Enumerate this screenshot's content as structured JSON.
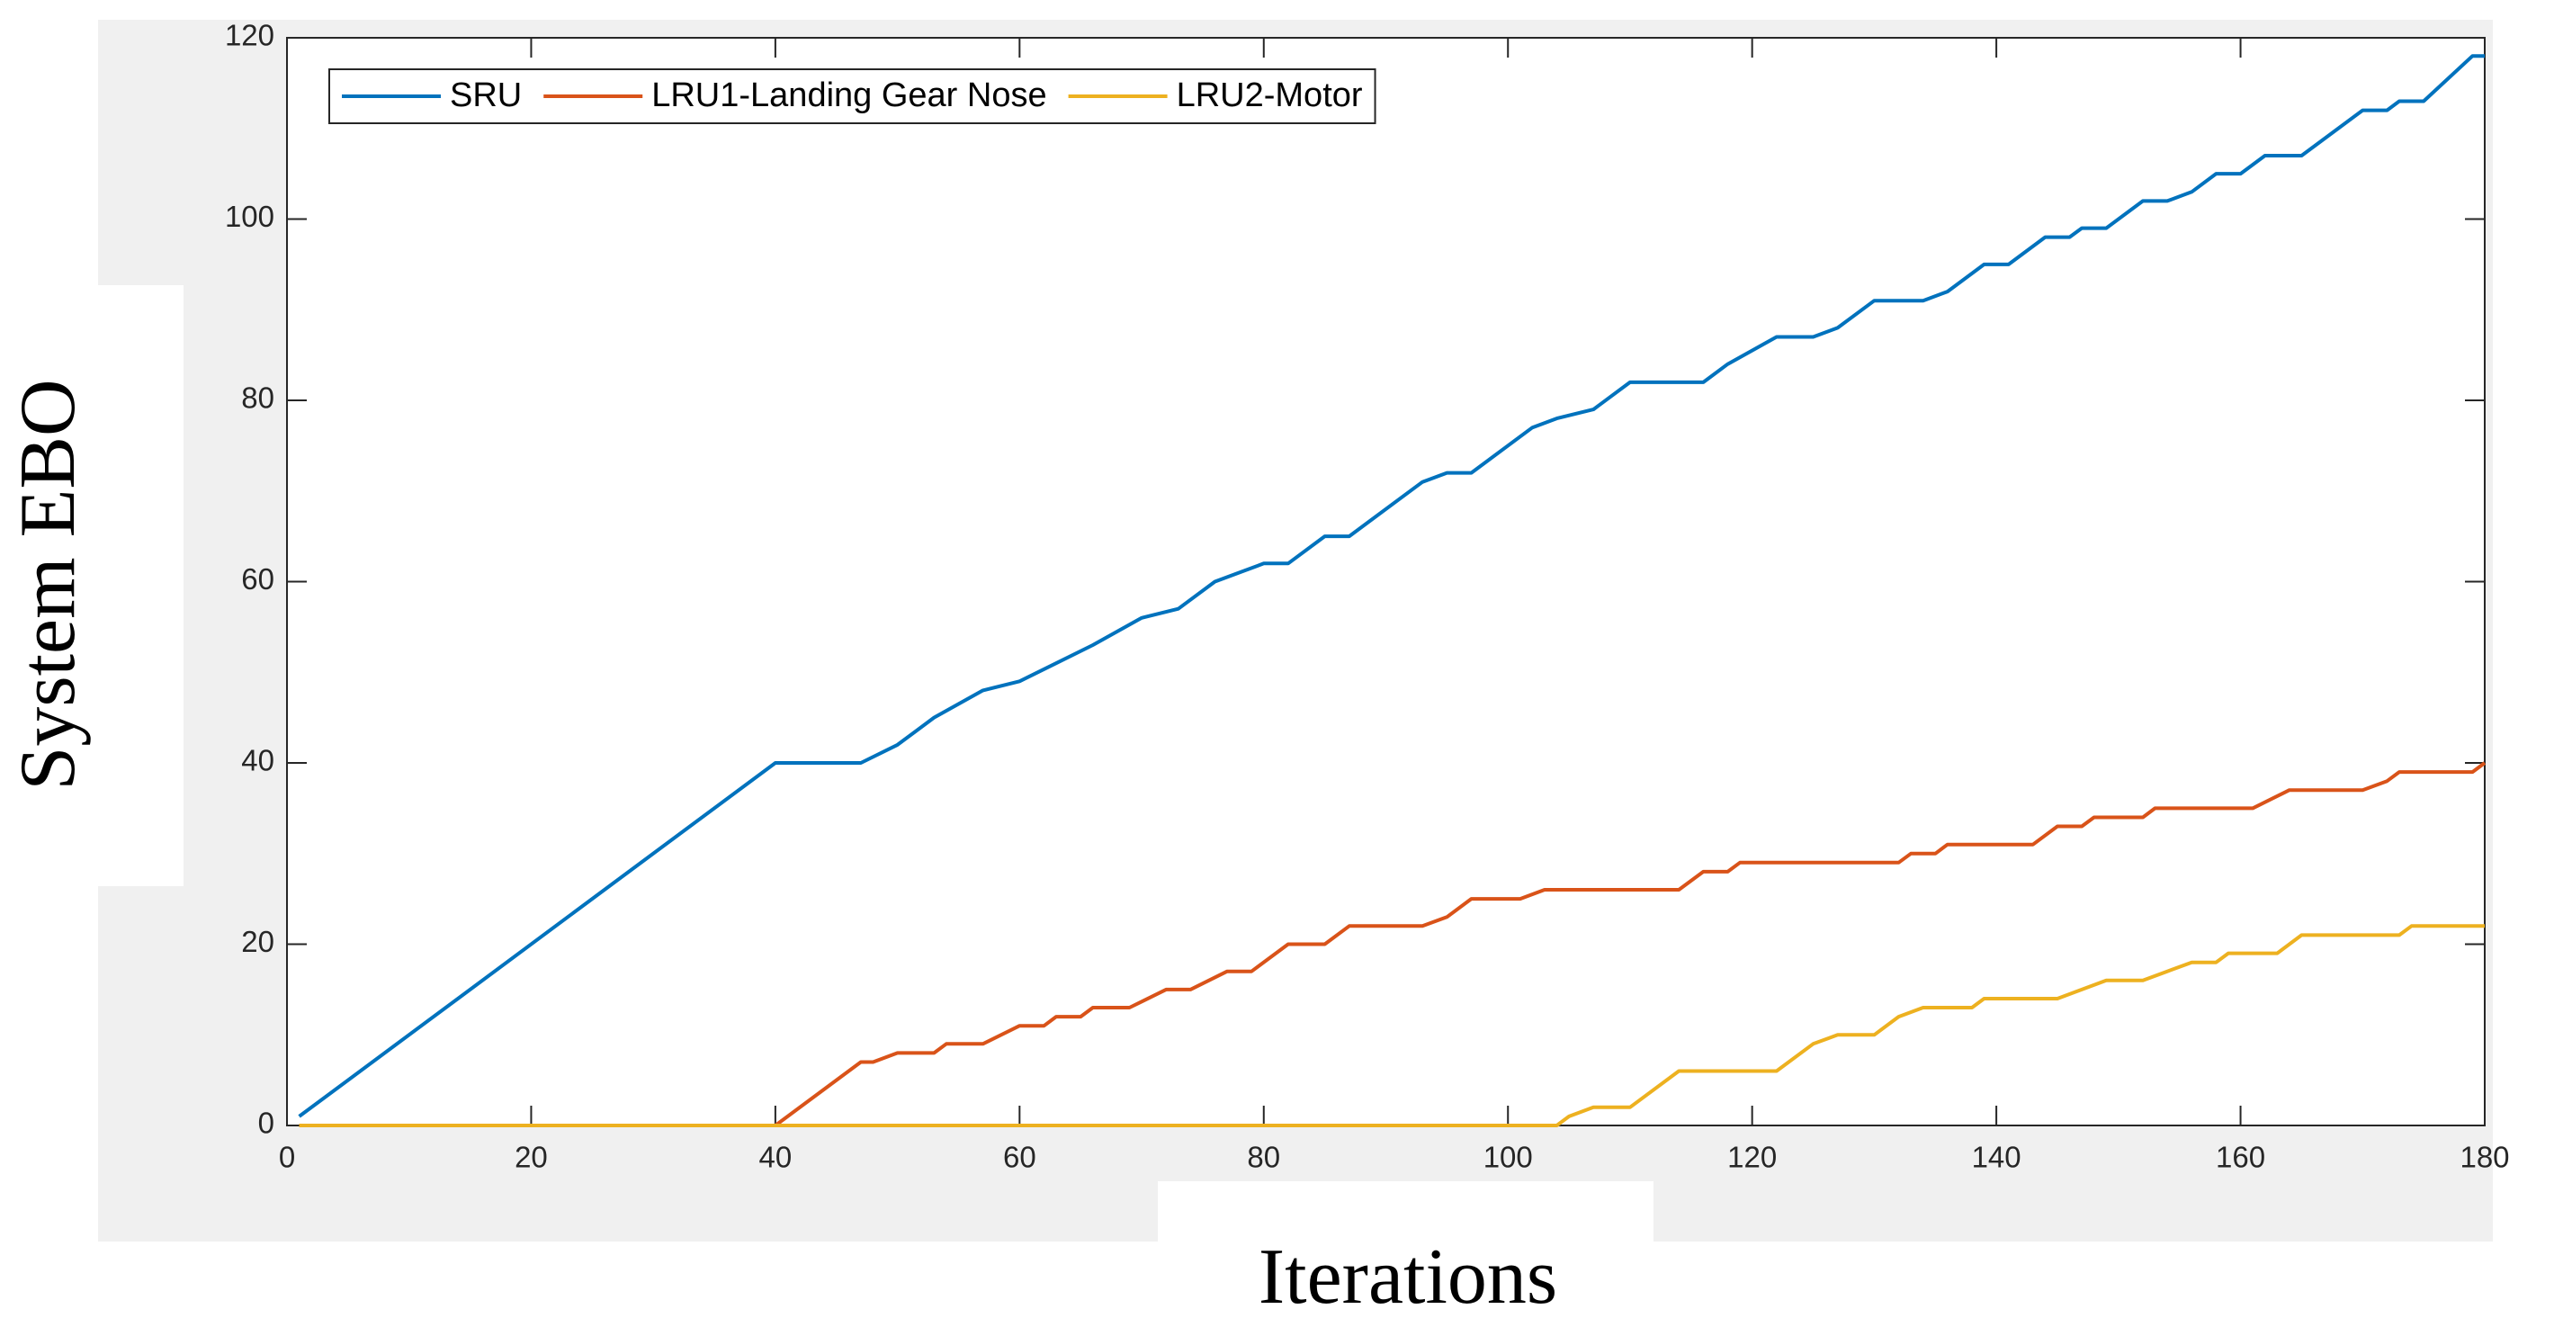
{
  "chart_data": {
    "type": "line",
    "xlabel": "Iterations",
    "ylabel": "System EBO",
    "xlim": [
      0,
      180
    ],
    "xticks": [
      0,
      20,
      40,
      60,
      80,
      100,
      120,
      140,
      160,
      180
    ],
    "ylim": [
      0,
      120
    ],
    "yticks": [
      0,
      20,
      40,
      60,
      80,
      100,
      120
    ],
    "legend": "northwest",
    "series": [
      {
        "name": "SRU",
        "color": "#0072BD",
        "x": [
          1,
          40,
          47,
          50,
          53,
          57,
          60,
          63,
          66,
          70,
          73,
          76,
          80,
          82,
          85,
          87,
          93,
          95,
          97,
          102,
          104,
          107,
          110,
          116,
          118,
          122,
          125,
          127,
          130,
          134,
          136,
          139,
          141,
          144,
          146,
          147,
          149,
          152,
          154,
          156,
          158,
          160,
          162,
          165,
          170,
          172,
          173,
          175,
          179,
          180
        ],
        "values": [
          1,
          40,
          40,
          42,
          45,
          48,
          49,
          51,
          53,
          56,
          57,
          60,
          62,
          62,
          65,
          65,
          71,
          72,
          72,
          77,
          78,
          79,
          82,
          82,
          84,
          87,
          87,
          88,
          91,
          91,
          92,
          95,
          95,
          98,
          98,
          99,
          99,
          102,
          102,
          103,
          105,
          105,
          107,
          107,
          112,
          112,
          113,
          113,
          118,
          118
        ]
      },
      {
        "name": "LRU1-Landing Gear Nose",
        "color": "#D95319",
        "x": [
          1,
          40,
          47,
          48,
          50,
          53,
          54,
          57,
          60,
          62,
          63,
          65,
          66,
          69,
          72,
          74,
          77,
          79,
          82,
          85,
          87,
          93,
          95,
          97,
          101,
          103,
          114,
          116,
          118,
          119,
          132,
          133,
          135,
          136,
          143,
          145,
          147,
          148,
          152,
          153,
          161,
          164,
          170,
          172,
          173,
          179,
          180
        ],
        "values": [
          0,
          0,
          7,
          7,
          8,
          8,
          9,
          9,
          11,
          11,
          12,
          12,
          13,
          13,
          15,
          15,
          17,
          17,
          20,
          20,
          22,
          22,
          23,
          25,
          25,
          26,
          26,
          28,
          28,
          29,
          29,
          30,
          30,
          31,
          31,
          33,
          33,
          34,
          34,
          35,
          35,
          37,
          37,
          38,
          39,
          39,
          40
        ]
      },
      {
        "name": "LRU2-Motor",
        "color": "#EDB120",
        "x": [
          1,
          104,
          105,
          107,
          110,
          114,
          122,
          125,
          127,
          130,
          132,
          134,
          138,
          139,
          145,
          147,
          149,
          152,
          154,
          156,
          158,
          159,
          163,
          165,
          173,
          174,
          180
        ],
        "values": [
          0,
          0,
          1,
          2,
          2,
          6,
          6,
          9,
          10,
          10,
          12,
          13,
          13,
          14,
          14,
          15,
          16,
          16,
          17,
          18,
          18,
          19,
          19,
          21,
          21,
          22,
          22
        ]
      }
    ]
  }
}
